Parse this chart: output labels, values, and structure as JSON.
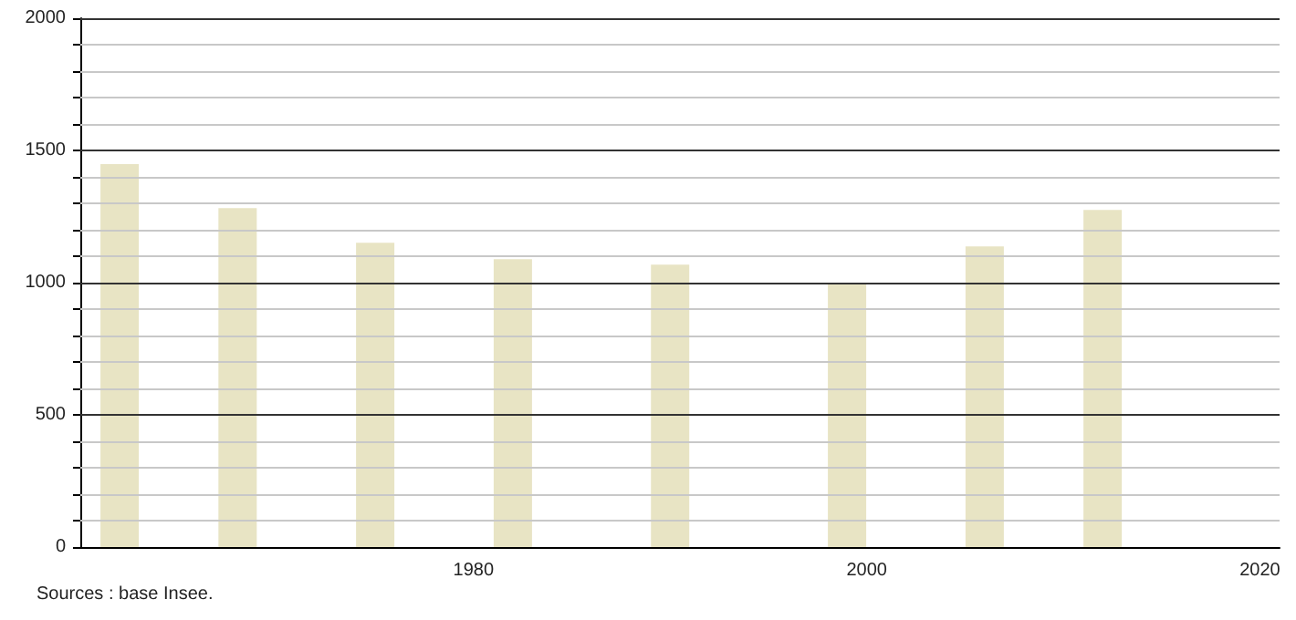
{
  "chart_data": {
    "type": "bar",
    "x": [
      1962,
      1968,
      1975,
      1982,
      1990,
      1999,
      2006,
      2012
    ],
    "values": [
      1448,
      1282,
      1151,
      1089,
      1068,
      994,
      1137,
      1275
    ],
    "color": "#e8e4c4",
    "xlim": [
      1960,
      2021
    ],
    "xticks": [
      1980,
      2000,
      2020
    ],
    "ylim": [
      0,
      2000
    ],
    "yticks": [
      0,
      {
        "value": 100,
        "label": null
      },
      {
        "value": 200,
        "label": null
      },
      {
        "value": 300,
        "label": null
      },
      {
        "value": 400,
        "label": null
      },
      500,
      {
        "value": 600,
        "label": null
      },
      {
        "value": 700,
        "label": null
      },
      {
        "value": 800,
        "label": null
      },
      {
        "value": 900,
        "label": null
      },
      1000,
      {
        "value": 1100,
        "label": null
      },
      {
        "value": 1200,
        "label": null
      },
      {
        "value": 1300,
        "label": null
      },
      {
        "value": 1400,
        "label": null
      },
      1500,
      {
        "value": 1600,
        "label": null
      },
      {
        "value": 1700,
        "label": null
      },
      {
        "value": 1800,
        "label": null
      },
      {
        "value": 1900,
        "label": null
      },
      2000
    ],
    "grid": "y",
    "annotations": [
      "Sources : base Insee."
    ]
  }
}
